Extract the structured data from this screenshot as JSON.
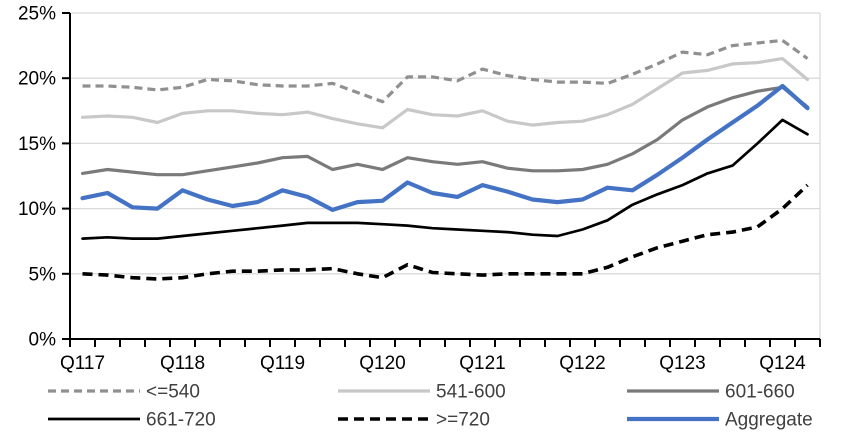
{
  "chart_data": {
    "type": "line",
    "title": "",
    "xlabel": "",
    "ylabel": "",
    "ylim": [
      0,
      25
    ],
    "y_tick_step": 5,
    "y_tick_labels": [
      "0%",
      "5%",
      "10%",
      "15%",
      "20%",
      "25%"
    ],
    "x_tick_labels": [
      "Q117",
      "Q118",
      "Q119",
      "Q120",
      "Q121",
      "Q122",
      "Q123",
      "Q124"
    ],
    "categories": [
      "Q117",
      "Q217",
      "Q317",
      "Q417",
      "Q118",
      "Q218",
      "Q318",
      "Q418",
      "Q119",
      "Q219",
      "Q319",
      "Q419",
      "Q120",
      "Q220",
      "Q320",
      "Q420",
      "Q121",
      "Q221",
      "Q321",
      "Q421",
      "Q122",
      "Q222",
      "Q322",
      "Q422",
      "Q123",
      "Q223",
      "Q323",
      "Q423",
      "Q124",
      "Q224"
    ],
    "grid": "horizontal",
    "gridline_color": "#d9d9d9",
    "axis_color": "#000000",
    "legend_position": "bottom",
    "legend_text_color": "#404040",
    "series": [
      {
        "name": "<=540",
        "color": "#909090",
        "style": "dashed",
        "width": 3.2,
        "values": [
          19.4,
          19.4,
          19.3,
          19.1,
          19.3,
          19.9,
          19.8,
          19.5,
          19.4,
          19.4,
          19.6,
          18.9,
          18.2,
          20.1,
          20.1,
          19.8,
          20.7,
          20.2,
          19.9,
          19.7,
          19.7,
          19.6,
          20.3,
          21.1,
          22.0,
          21.8,
          22.5,
          22.7,
          22.9,
          21.5
        ]
      },
      {
        "name": "541-600",
        "color": "#c8c8c8",
        "style": "solid",
        "width": 3.2,
        "values": [
          17.0,
          17.1,
          17.0,
          16.6,
          17.3,
          17.5,
          17.5,
          17.3,
          17.2,
          17.4,
          16.9,
          16.5,
          16.2,
          17.6,
          17.2,
          17.1,
          17.5,
          16.7,
          16.4,
          16.6,
          16.7,
          17.2,
          18.0,
          19.2,
          20.4,
          20.6,
          21.1,
          21.2,
          21.5,
          19.9
        ]
      },
      {
        "name": "601-660",
        "color": "#7a7a7a",
        "style": "solid",
        "width": 3.2,
        "values": [
          12.7,
          13.0,
          12.8,
          12.6,
          12.6,
          12.9,
          13.2,
          13.5,
          13.9,
          14.0,
          13.0,
          13.4,
          13.0,
          13.9,
          13.6,
          13.4,
          13.6,
          13.1,
          12.9,
          12.9,
          13.0,
          13.4,
          14.2,
          15.3,
          16.8,
          17.8,
          18.5,
          19.0,
          19.3,
          17.8
        ]
      },
      {
        "name": "661-720",
        "color": "#000000",
        "style": "solid",
        "width": 2.7,
        "values": [
          7.7,
          7.8,
          7.7,
          7.7,
          7.9,
          8.1,
          8.3,
          8.5,
          8.7,
          8.9,
          8.9,
          8.9,
          8.8,
          8.7,
          8.5,
          8.4,
          8.3,
          8.2,
          8.0,
          7.9,
          8.4,
          9.1,
          10.3,
          11.1,
          11.8,
          12.7,
          13.3,
          15.0,
          16.8,
          15.7
        ]
      },
      {
        "name": ">=720",
        "color": "#000000",
        "style": "dashed",
        "width": 3.6,
        "values": [
          5.0,
          4.9,
          4.7,
          4.6,
          4.7,
          5.0,
          5.2,
          5.2,
          5.3,
          5.3,
          5.4,
          5.0,
          4.7,
          5.7,
          5.1,
          5.0,
          4.9,
          5.0,
          5.0,
          5.0,
          5.0,
          5.5,
          6.3,
          7.0,
          7.5,
          8.0,
          8.2,
          8.6,
          10.0,
          11.8
        ]
      },
      {
        "name": "Aggregate",
        "color": "#4472c4",
        "style": "solid",
        "width": 4.2,
        "values": [
          10.8,
          11.2,
          10.1,
          10.0,
          11.4,
          10.7,
          10.2,
          10.5,
          11.4,
          10.9,
          9.9,
          10.5,
          10.6,
          12.0,
          11.2,
          10.9,
          11.8,
          11.3,
          10.7,
          10.5,
          10.7,
          11.6,
          11.4,
          12.6,
          13.9,
          15.3,
          16.6,
          17.9,
          19.4,
          17.7
        ]
      }
    ]
  }
}
